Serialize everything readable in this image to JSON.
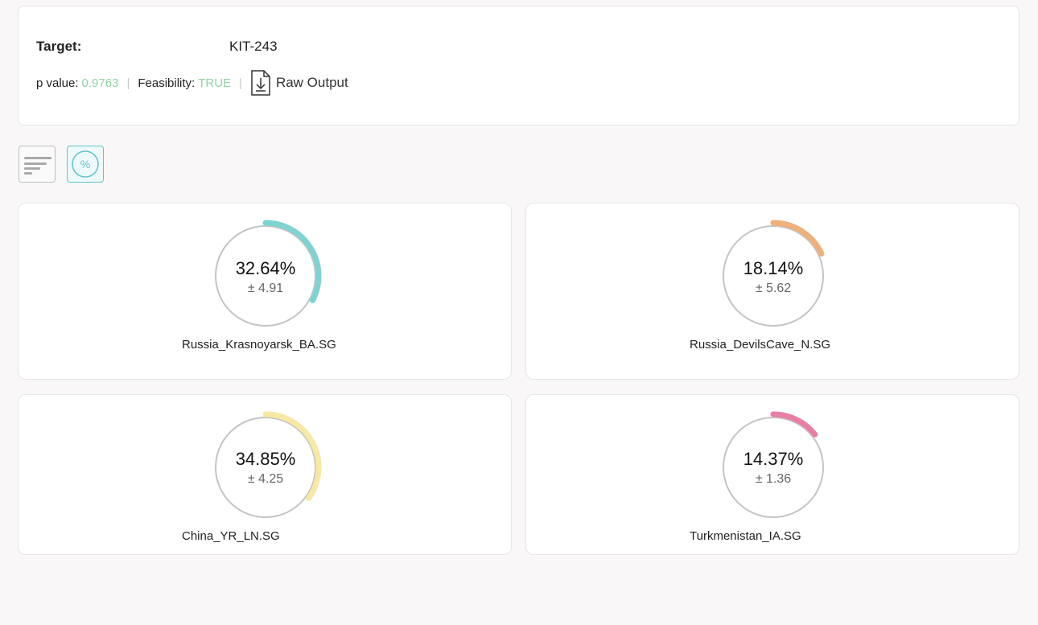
{
  "summary": {
    "target_label": "Target:",
    "target_value": "KIT-243",
    "p_value_label": "p value:",
    "p_value": "0.9763",
    "feasibility_label": "Feasibility:",
    "feasibility": "TRUE",
    "raw_output_label": "Raw Output"
  },
  "view_toggle": {
    "percent_symbol": "%"
  },
  "cards": [
    {
      "value": "32.64%",
      "err": "± 4.91",
      "label": "Russia_Krasnoyarsk_BA.SG",
      "fraction": 0.3264,
      "color": "#7fd3d3"
    },
    {
      "value": "18.14%",
      "err": "± 5.62",
      "label": "Russia_DevilsCave_N.SG",
      "fraction": 0.1814,
      "color": "#efb07a"
    },
    {
      "value": "34.85%",
      "err": "± 4.25",
      "label": "China_YR_LN.SG",
      "fraction": 0.3485,
      "color": "#f7e9a4"
    },
    {
      "value": "14.37%",
      "err": "± 1.36",
      "label": "Turkmenistan_IA.SG",
      "fraction": 0.1437,
      "color": "#e87ea6"
    }
  ]
}
